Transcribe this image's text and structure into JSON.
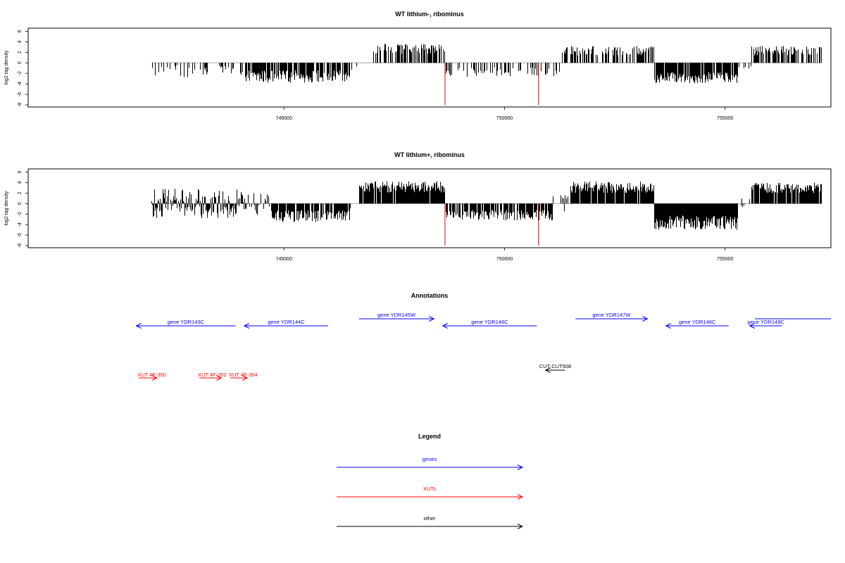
{
  "chart_data": [
    {
      "type": "bar",
      "title": "WT lithium-, ribominus",
      "ylabel": "log2 tag density",
      "xlabel": "",
      "x_range": [
        742000,
        757200
      ],
      "xlim": [
        739200,
        757400
      ],
      "ylim": [
        -8.4,
        6.6
      ],
      "xticks": [
        745000,
        750000,
        755000
      ],
      "xtick_labels": [
        "745000",
        "750000",
        "755000"
      ],
      "yticks": [
        -8,
        -6,
        -4,
        -2,
        0,
        2,
        4,
        6
      ],
      "ytick_labels": [
        "-8",
        "-6",
        "-4",
        "-2",
        "0",
        "2",
        "4",
        "6"
      ],
      "bar_color": "#000000",
      "highlight_color": "#e00000",
      "regions": [
        {
          "x": [
            742000,
            743500
          ],
          "mean": -1.6,
          "spread": 1.2,
          "sign": -1,
          "density": 0.25
        },
        {
          "x": [
            743500,
            744000
          ],
          "mean": -1.5,
          "spread": 1.0,
          "sign": -1,
          "density": 0.3
        },
        {
          "x": [
            744000,
            746500
          ],
          "mean": -2.6,
          "spread": 1.2,
          "sign": -1,
          "density": 0.85
        },
        {
          "x": [
            746500,
            747000
          ],
          "mean": -1.0,
          "spread": 0.5,
          "sign": -1,
          "density": 0.05
        },
        {
          "x": [
            747000,
            748650
          ],
          "mean": 2.6,
          "spread": 1.0,
          "sign": 1,
          "density": 0.65
        },
        {
          "x": [
            748650,
            751300
          ],
          "mean": -1.8,
          "spread": 0.9,
          "sign": -1,
          "density": 0.3
        },
        {
          "x": [
            751300,
            753400
          ],
          "mean": 2.3,
          "spread": 0.9,
          "sign": 1,
          "density": 0.45
        },
        {
          "x": [
            753400,
            755300
          ],
          "mean": -2.8,
          "spread": 1.1,
          "sign": -1,
          "density": 0.8
        },
        {
          "x": [
            755300,
            755600
          ],
          "mean": -0.8,
          "spread": 0.4,
          "sign": -1,
          "density": 0.1
        },
        {
          "x": [
            755600,
            757200
          ],
          "mean": 2.3,
          "spread": 0.9,
          "sign": 1,
          "density": 0.6
        }
      ],
      "highlights": [
        {
          "x": 748650,
          "value": -8.0
        },
        {
          "x": 750770,
          "value": -8.0
        }
      ]
    },
    {
      "type": "bar",
      "title": "WT lithium+, ribominus",
      "ylabel": "log2 tag density",
      "xlabel": "",
      "x_range": [
        742000,
        757200
      ],
      "xlim": [
        739200,
        757400
      ],
      "ylim": [
        -8.4,
        6.6
      ],
      "xticks": [
        745000,
        750000,
        755000
      ],
      "xtick_labels": [
        "745000",
        "750000",
        "755000"
      ],
      "yticks": [
        -8,
        -6,
        -4,
        -2,
        0,
        2,
        4,
        6
      ],
      "ytick_labels": [
        "-8",
        "-6",
        "-4",
        "-2",
        "0",
        "2",
        "4",
        "6"
      ],
      "bar_color": "#000000",
      "highlight_color": "#e00000",
      "regions": [
        {
          "x": [
            742000,
            744100
          ],
          "mean": 0.2,
          "spread": 2.6,
          "sign": 0,
          "density": 0.9
        },
        {
          "x": [
            744100,
            744700
          ],
          "mean": 0.0,
          "spread": 2.2,
          "sign": 0,
          "density": 0.5
        },
        {
          "x": [
            744700,
            746500
          ],
          "mean": -2.4,
          "spread": 1.1,
          "sign": -1,
          "density": 0.85
        },
        {
          "x": [
            746500,
            746700
          ],
          "mean": -1.0,
          "spread": 0.5,
          "sign": -1,
          "density": 0.1
        },
        {
          "x": [
            746700,
            748650
          ],
          "mean": 3.2,
          "spread": 1.1,
          "sign": 1,
          "density": 0.95
        },
        {
          "x": [
            748650,
            751100
          ],
          "mean": -2.2,
          "spread": 1.0,
          "sign": -1,
          "density": 0.75
        },
        {
          "x": [
            751100,
            751500
          ],
          "mean": -0.8,
          "spread": 0.8,
          "sign": 0,
          "density": 0.3
        },
        {
          "x": [
            751500,
            753400
          ],
          "mean": 3.1,
          "spread": 1.1,
          "sign": 1,
          "density": 0.95
        },
        {
          "x": [
            753400,
            755300
          ],
          "mean": -3.6,
          "spread": 1.4,
          "sign": -1,
          "density": 1.0
        },
        {
          "x": [
            755300,
            755600
          ],
          "mean": 0.0,
          "spread": 1.0,
          "sign": 0,
          "density": 0.3
        },
        {
          "x": [
            755600,
            757200
          ],
          "mean": 3.0,
          "spread": 1.0,
          "sign": 1,
          "density": 0.9
        }
      ],
      "highlights": [
        {
          "x": 748650,
          "value": -8.0
        },
        {
          "x": 750770,
          "value": -8.0
        }
      ]
    }
  ],
  "annotations": {
    "title": "Annotations",
    "xlim": [
      739200,
      757400
    ],
    "genes": [
      {
        "label": "gene YDR143C",
        "start": 741650,
        "end": 743900,
        "strand": "-",
        "lane": "low"
      },
      {
        "label": "gene YDR144C",
        "start": 744100,
        "end": 746000,
        "strand": "-",
        "lane": "low"
      },
      {
        "label": "gene YDR145W",
        "start": 746700,
        "end": 748400,
        "strand": "+",
        "lane": "high"
      },
      {
        "label": "gene YDR146C",
        "start": 748600,
        "end": 750730,
        "strand": "-",
        "lane": "low"
      },
      {
        "label": "gene YDR147W",
        "start": 751610,
        "end": 753240,
        "strand": "+",
        "lane": "high"
      },
      {
        "label": "gene YDR148C",
        "start": 753660,
        "end": 755080,
        "strand": "-",
        "lane": "low"
      },
      {
        "label": "gene YDR149C",
        "start": 755560,
        "end": 756290,
        "strand": "-",
        "lane": "low"
      },
      {
        "label": "",
        "start": 755680,
        "end": 757400,
        "strand": "none",
        "lane": "high"
      }
    ],
    "xuts": [
      {
        "label": "XUT 4F-350",
        "start": 741710,
        "end": 742120,
        "strand": "+"
      },
      {
        "label": "XUT 4F-352",
        "start": 743080,
        "end": 743580,
        "strand": "+"
      },
      {
        "label": "XUT 4F-354",
        "start": 743780,
        "end": 744170,
        "strand": "+"
      }
    ],
    "others": [
      {
        "label": "CUT CUT508",
        "start": 750930,
        "end": 751370,
        "strand": "-"
      }
    ]
  },
  "legend": {
    "title": "Legend",
    "items": [
      {
        "label": "genes",
        "color": "#0000ff"
      },
      {
        "label": "XUTs",
        "color": "#ff0000"
      },
      {
        "label": "other",
        "color": "#000000"
      }
    ]
  },
  "colors": {
    "genes": "#0000ff",
    "xuts": "#ff0000",
    "other": "#000000",
    "baseline": "#888888"
  }
}
